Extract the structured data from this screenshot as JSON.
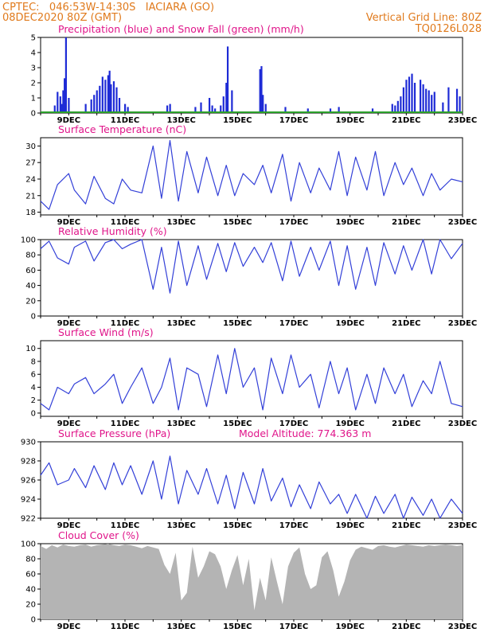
{
  "header": {
    "line1_left": "CPTEC:   046:53W-14:30S   IACIARA (GO)",
    "line2_left": "08DEC2020 80Z (GMT)",
    "line2_right": "Vertical Grid Line: 80Z",
    "line3_right": "TQ0126L028"
  },
  "colors": {
    "header": "#e07a1c",
    "title": "#e0158a",
    "line": "#3340d8",
    "precip": "#1e2bd6",
    "snow": "#2aa02a",
    "cloud": "#b4b4b4"
  },
  "x_axis": {
    "start_day": 8,
    "end_day": 23,
    "tick_labels": [
      {
        "day": 9,
        "label": "9DEC"
      },
      {
        "day": 11,
        "label": "11DEC"
      },
      {
        "day": 13,
        "label": "13DEC"
      },
      {
        "day": 15,
        "label": "15DEC"
      },
      {
        "day": 17,
        "label": "17DEC"
      },
      {
        "day": 19,
        "label": "19DEC"
      },
      {
        "day": 21,
        "label": "21DEC"
      },
      {
        "day": 23,
        "label": "23DEC"
      }
    ]
  },
  "chart_data": [
    {
      "id": "precip",
      "type": "bar",
      "title": "Precipitation (blue) and Snow Fall (green) (mm/h)",
      "ylim": [
        0,
        5
      ],
      "yticks": [
        "0",
        "1",
        "2",
        "3",
        "4",
        "5"
      ],
      "series": [
        {
          "name": "Precipitation (blue)",
          "days": [
            8.5,
            8.6,
            8.7,
            8.75,
            8.8,
            8.85,
            8.9,
            9.0,
            9.6,
            9.8,
            9.9,
            10.0,
            10.1,
            10.2,
            10.3,
            10.4,
            10.45,
            10.5,
            10.6,
            10.7,
            10.8,
            11.0,
            11.1,
            12.5,
            12.6,
            13.5,
            13.7,
            14.0,
            14.1,
            14.2,
            14.4,
            14.5,
            14.6,
            14.65,
            14.8,
            15.8,
            15.85,
            15.9,
            16.0,
            16.7,
            17.5,
            18.3,
            18.6,
            19.8,
            20.5,
            20.6,
            20.7,
            20.8,
            20.9,
            21.0,
            21.1,
            21.2,
            21.3,
            21.5,
            21.6,
            21.7,
            21.8,
            21.9,
            22.0,
            22.3,
            22.5,
            22.8,
            22.9
          ],
          "values": [
            0.5,
            1.4,
            1.1,
            0.6,
            1.5,
            2.3,
            5.0,
            1.0,
            0.6,
            0.9,
            1.2,
            1.5,
            1.8,
            2.4,
            2.2,
            2.5,
            2.8,
            1.9,
            2.1,
            1.7,
            1.0,
            0.6,
            0.4,
            0.5,
            0.6,
            0.4,
            0.7,
            1.0,
            0.5,
            0.3,
            0.5,
            1.1,
            2.0,
            4.4,
            1.5,
            2.9,
            3.1,
            1.2,
            0.6,
            0.4,
            0.3,
            0.3,
            0.4,
            0.3,
            0.6,
            0.5,
            0.8,
            1.1,
            1.7,
            2.2,
            2.4,
            2.6,
            2.0,
            2.2,
            1.9,
            1.6,
            1.5,
            1.2,
            1.4,
            0.7,
            1.7,
            1.6,
            1.1
          ]
        },
        {
          "name": "Snow Fall (green)",
          "days": [
            8.0,
            23.0
          ],
          "values": [
            0,
            0
          ]
        }
      ]
    },
    {
      "id": "temp",
      "type": "line",
      "title": "Surface Temperature (nC)",
      "ylim": [
        17.5,
        31.5
      ],
      "yticks": [
        "18",
        "21",
        "24",
        "27",
        "30"
      ],
      "x": [
        8.0,
        8.3,
        8.6,
        9.0,
        9.2,
        9.6,
        9.9,
        10.3,
        10.6,
        10.9,
        11.2,
        11.6,
        12.0,
        12.3,
        12.6,
        12.9,
        13.2,
        13.6,
        13.9,
        14.3,
        14.6,
        14.9,
        15.2,
        15.6,
        15.9,
        16.2,
        16.6,
        16.9,
        17.2,
        17.6,
        17.9,
        18.3,
        18.6,
        18.9,
        19.2,
        19.6,
        19.9,
        20.2,
        20.6,
        20.9,
        21.2,
        21.6,
        21.9,
        22.2,
        22.6,
        23.0
      ],
      "y": [
        20,
        18.5,
        23,
        25,
        22,
        19.5,
        24.5,
        20.5,
        19.5,
        24,
        22,
        21.5,
        30,
        20.5,
        31,
        20,
        29,
        21.5,
        28,
        21,
        26.5,
        21,
        25,
        23,
        26.5,
        21.5,
        28.5,
        20,
        27,
        21.5,
        26,
        22,
        29,
        21,
        28,
        22,
        29,
        21,
        27,
        23,
        26,
        21,
        25,
        22,
        24,
        23.5
      ]
    },
    {
      "id": "rh",
      "type": "line",
      "title": "Relative Humidity (%)",
      "ylim": [
        0,
        100
      ],
      "yticks": [
        "0",
        "20",
        "40",
        "60",
        "80",
        "100"
      ],
      "x": [
        8.0,
        8.3,
        8.6,
        9.0,
        9.2,
        9.6,
        9.9,
        10.3,
        10.6,
        10.9,
        11.2,
        11.6,
        12.0,
        12.3,
        12.6,
        12.9,
        13.2,
        13.6,
        13.9,
        14.3,
        14.6,
        14.9,
        15.2,
        15.6,
        15.9,
        16.2,
        16.6,
        16.9,
        17.2,
        17.6,
        17.9,
        18.3,
        18.6,
        18.9,
        19.2,
        19.6,
        19.9,
        20.2,
        20.6,
        20.9,
        21.2,
        21.6,
        21.9,
        22.2,
        22.6,
        23.0
      ],
      "y": [
        88,
        98,
        76,
        68,
        90,
        98,
        72,
        96,
        100,
        88,
        94,
        100,
        35,
        90,
        30,
        98,
        40,
        92,
        48,
        95,
        58,
        96,
        65,
        90,
        70,
        96,
        46,
        98,
        52,
        90,
        60,
        98,
        40,
        92,
        35,
        90,
        40,
        96,
        55,
        92,
        60,
        100,
        55,
        100,
        75,
        95
      ]
    },
    {
      "id": "wind",
      "type": "line",
      "title": "Surface Wind (m/s)",
      "ylim": [
        -0.5,
        11.2
      ],
      "yticks": [
        "0",
        "2",
        "4",
        "6",
        "8",
        "10"
      ],
      "x": [
        8.0,
        8.3,
        8.6,
        9.0,
        9.2,
        9.6,
        9.9,
        10.3,
        10.6,
        10.9,
        11.2,
        11.6,
        12.0,
        12.3,
        12.6,
        12.9,
        13.2,
        13.6,
        13.9,
        14.3,
        14.6,
        14.9,
        15.2,
        15.6,
        15.9,
        16.2,
        16.6,
        16.9,
        17.2,
        17.6,
        17.9,
        18.3,
        18.6,
        18.9,
        19.2,
        19.6,
        19.9,
        20.2,
        20.6,
        20.9,
        21.2,
        21.6,
        21.9,
        22.2,
        22.6,
        23.0
      ],
      "y": [
        1.5,
        0.5,
        4,
        3,
        4.5,
        5.5,
        3,
        4.5,
        6,
        1.5,
        4,
        7,
        1.5,
        4,
        8.5,
        0.5,
        7,
        6,
        1,
        9,
        3,
        10,
        4,
        7,
        0.5,
        8.5,
        3,
        9,
        4,
        6,
        0.8,
        8,
        3,
        7,
        0.5,
        6,
        1.5,
        7,
        3,
        6,
        1,
        5,
        3,
        8,
        1.5,
        1
      ]
    },
    {
      "id": "pressure",
      "type": "line",
      "title": "Surface Pressure (hPa)",
      "subtitle": "Model Altitude: 774.363 m",
      "ylim": [
        922,
        930
      ],
      "yticks": [
        "922",
        "924",
        "926",
        "928",
        "930"
      ],
      "x": [
        8.0,
        8.3,
        8.6,
        9.0,
        9.2,
        9.6,
        9.9,
        10.3,
        10.6,
        10.9,
        11.2,
        11.6,
        12.0,
        12.3,
        12.6,
        12.9,
        13.2,
        13.6,
        13.9,
        14.3,
        14.6,
        14.9,
        15.2,
        15.6,
        15.9,
        16.2,
        16.6,
        16.9,
        17.2,
        17.6,
        17.9,
        18.3,
        18.6,
        18.9,
        19.2,
        19.6,
        19.9,
        20.2,
        20.6,
        20.9,
        21.2,
        21.6,
        21.9,
        22.2,
        22.6,
        23.0
      ],
      "y": [
        926.5,
        927.8,
        925.5,
        926,
        927.2,
        925.2,
        927.5,
        925,
        927.8,
        925.5,
        927.5,
        924.5,
        928,
        924,
        928.5,
        923.5,
        927,
        924.5,
        927.2,
        923.5,
        926.5,
        923,
        926.8,
        923.5,
        927.2,
        923.8,
        926.2,
        923.2,
        925.5,
        923,
        925.8,
        923.5,
        924.5,
        922.5,
        924.5,
        922,
        924.3,
        922.5,
        924.5,
        922,
        924.2,
        922.3,
        924,
        922,
        924,
        922.5
      ]
    },
    {
      "id": "cloud",
      "type": "area",
      "title": "Cloud Cover (%)",
      "ylim": [
        0,
        100
      ],
      "yticks": [
        "0",
        "20",
        "40",
        "60",
        "80",
        "100"
      ],
      "x": [
        8.0,
        8.2,
        8.4,
        8.6,
        8.8,
        9.0,
        9.2,
        9.4,
        9.6,
        9.8,
        10.0,
        10.2,
        10.4,
        10.6,
        10.8,
        11.0,
        11.2,
        11.4,
        11.6,
        11.8,
        12.0,
        12.2,
        12.4,
        12.6,
        12.8,
        13.0,
        13.2,
        13.4,
        13.6,
        13.8,
        14.0,
        14.2,
        14.4,
        14.6,
        14.8,
        15.0,
        15.2,
        15.4,
        15.6,
        15.8,
        16.0,
        16.2,
        16.4,
        16.6,
        16.8,
        17.0,
        17.2,
        17.4,
        17.6,
        17.8,
        18.0,
        18.2,
        18.4,
        18.6,
        18.8,
        19.0,
        19.2,
        19.4,
        19.6,
        19.8,
        20.0,
        20.2,
        20.4,
        20.6,
        20.8,
        21.0,
        21.2,
        21.4,
        21.6,
        21.8,
        22.0,
        22.2,
        22.4,
        22.6,
        22.8,
        23.0
      ],
      "y": [
        97,
        93,
        98,
        95,
        99,
        97,
        96,
        98,
        99,
        96,
        98,
        99,
        100,
        98,
        97,
        99,
        98,
        96,
        94,
        97,
        95,
        93,
        72,
        60,
        88,
        25,
        35,
        96,
        55,
        70,
        90,
        86,
        70,
        40,
        65,
        85,
        45,
        80,
        12,
        55,
        25,
        82,
        50,
        20,
        70,
        88,
        95,
        60,
        40,
        45,
        82,
        90,
        65,
        30,
        50,
        78,
        92,
        96,
        94,
        92,
        97,
        98,
        96,
        95,
        97,
        99,
        98,
        97,
        96,
        98,
        97,
        98,
        99,
        98,
        97,
        98
      ]
    }
  ]
}
